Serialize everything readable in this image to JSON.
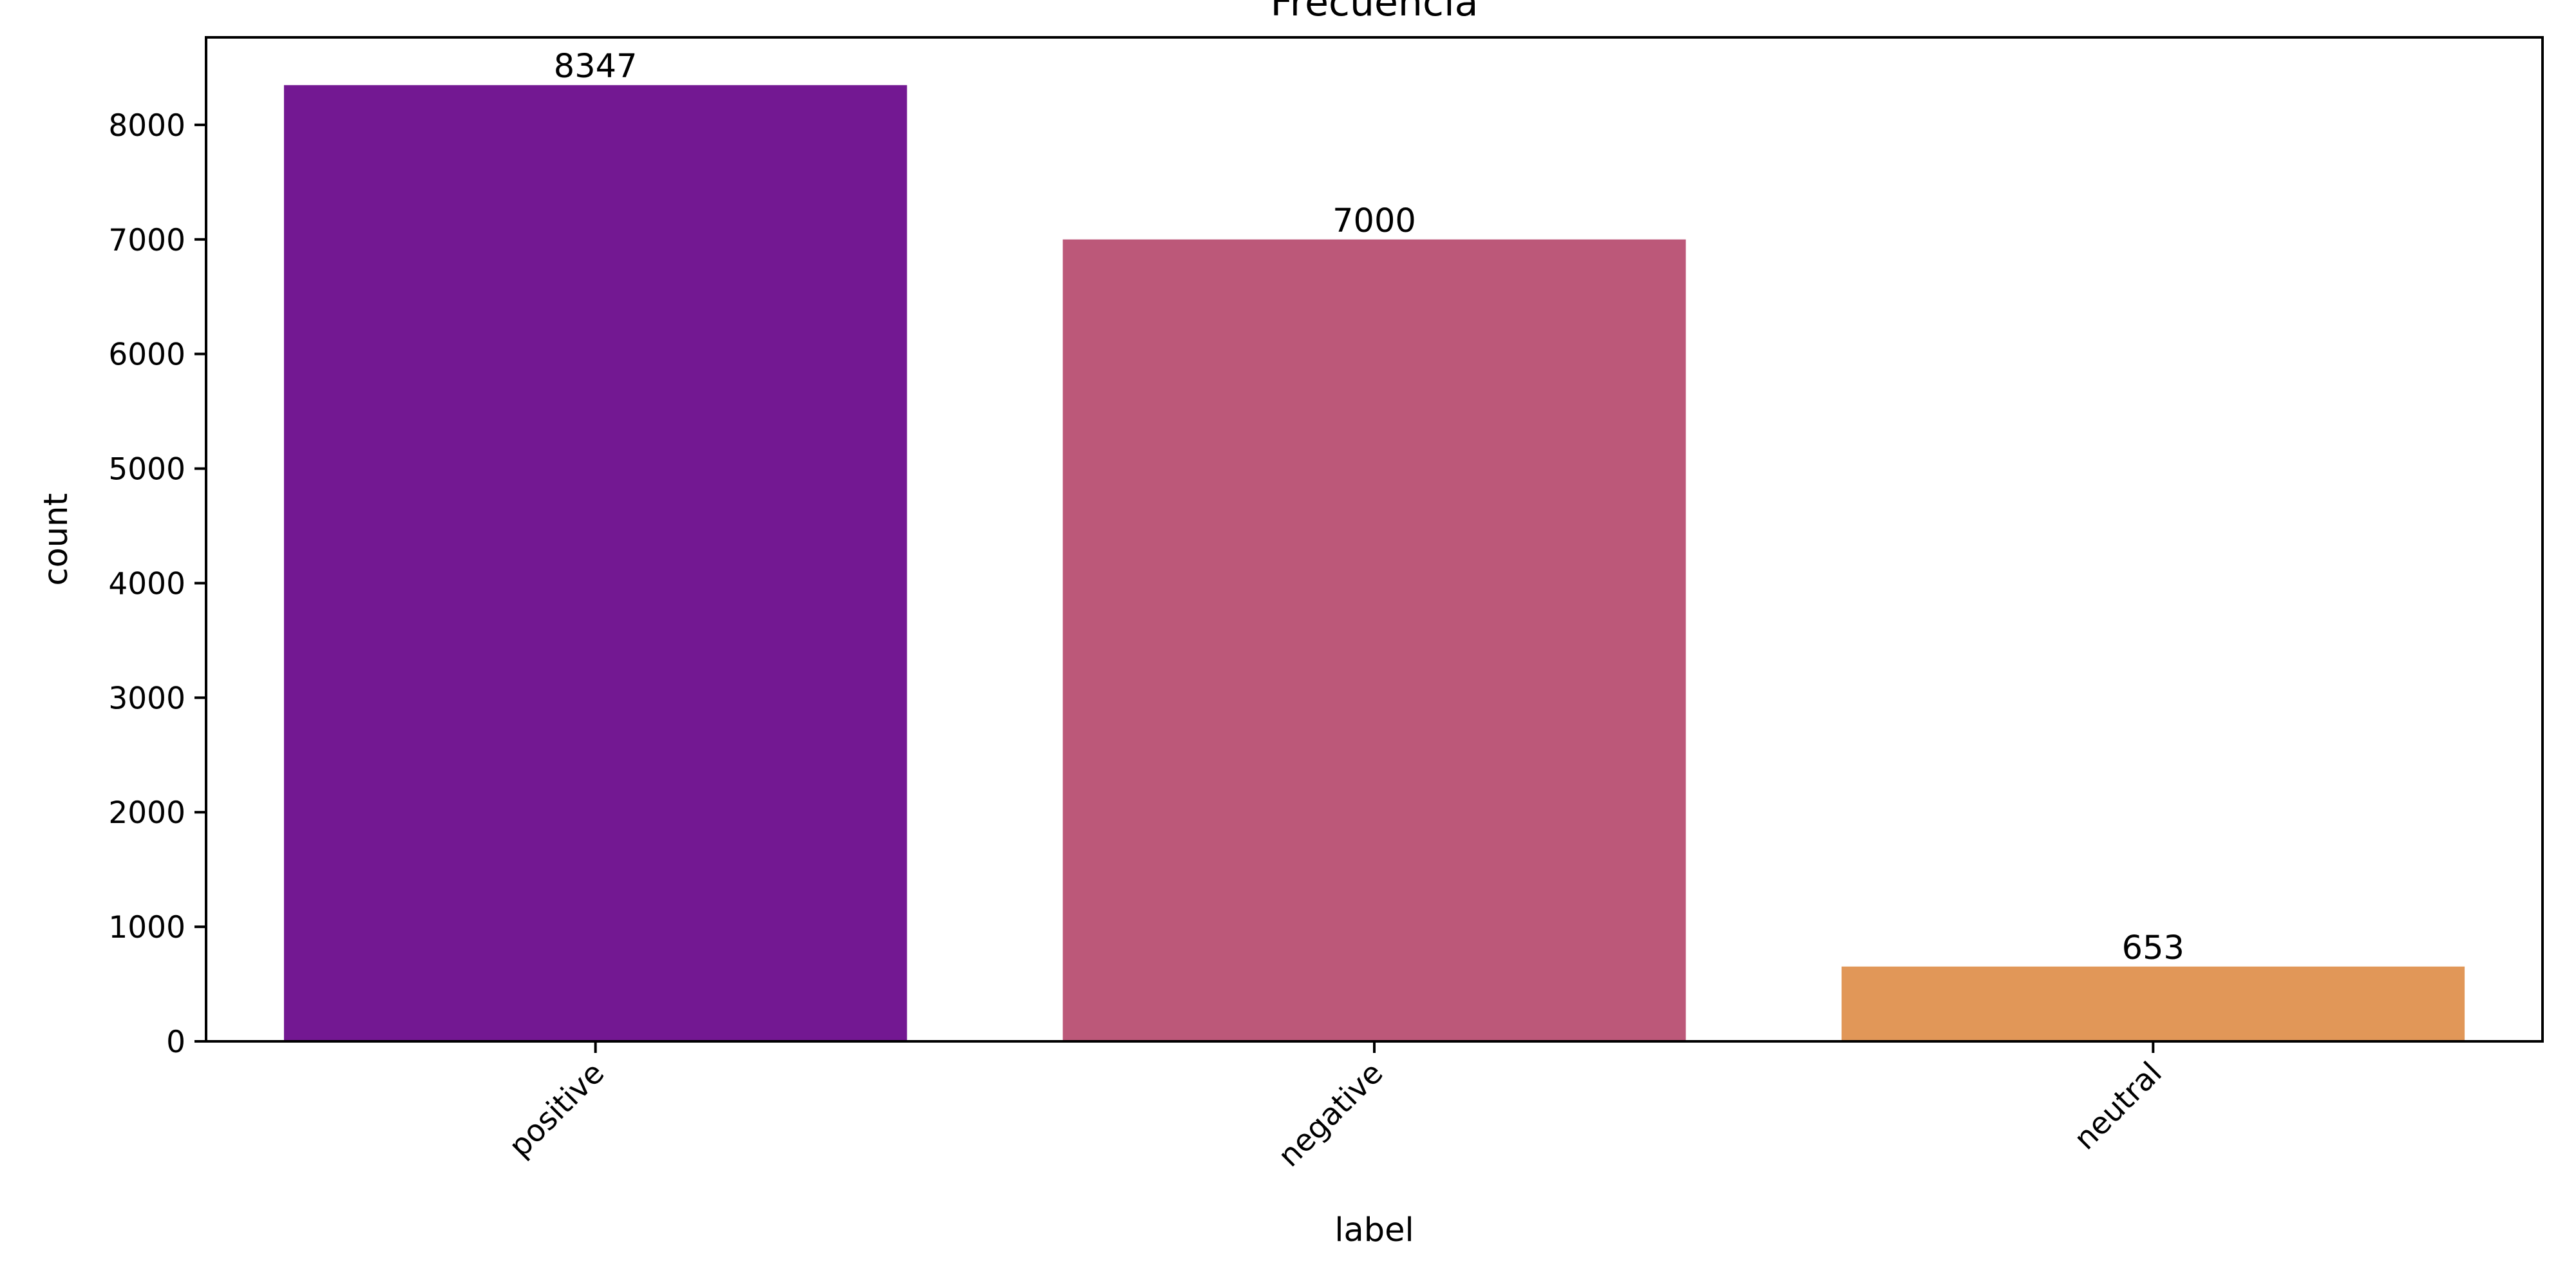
{
  "chart_data": {
    "type": "bar",
    "title": "Frecuencia",
    "xlabel": "label",
    "ylabel": "count",
    "categories": [
      "positive",
      "negative",
      "neutral"
    ],
    "values": [
      8347,
      7000,
      653
    ],
    "value_labels": [
      "8347",
      "7000",
      "653"
    ],
    "colors": [
      "#731892",
      "#bc5879",
      "#e19758"
    ],
    "ylim": [
      0,
      8764
    ],
    "yticks": [
      0,
      1000,
      2000,
      3000,
      4000,
      5000,
      6000,
      7000,
      8000
    ],
    "ytick_labels": [
      "0",
      "1000",
      "2000",
      "3000",
      "4000",
      "5000",
      "6000",
      "7000",
      "8000"
    ],
    "xtick_rotation_deg": 45,
    "grid": false,
    "legend": "none"
  }
}
